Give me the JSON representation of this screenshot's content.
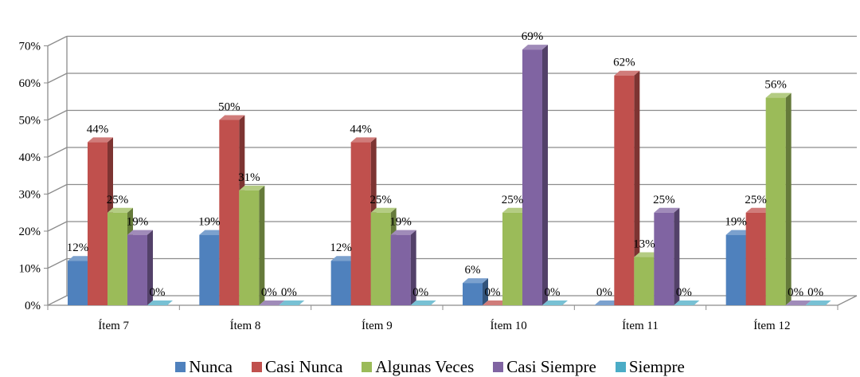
{
  "chart_data": {
    "type": "bar",
    "categories": [
      "Ítem 7",
      "Ítem 8",
      "Ítem 9",
      "Ítem 10",
      "Ítem 11",
      "Ítem 12"
    ],
    "series": [
      {
        "name": "Nunca",
        "color": "#4F81BD",
        "values": [
          12,
          19,
          12,
          6,
          0,
          19
        ],
        "labels": [
          "12%",
          "19%",
          "12%",
          "6%",
          "0%",
          "19%"
        ]
      },
      {
        "name": "Casi Nunca",
        "color": "#C0504D",
        "values": [
          44,
          50,
          44,
          0,
          62,
          25
        ],
        "labels": [
          "44%",
          "50%",
          "44%",
          "0%",
          "62%",
          "25%"
        ]
      },
      {
        "name": "Algunas Veces",
        "color": "#9BBB59",
        "values": [
          25,
          31,
          25,
          25,
          13,
          56
        ],
        "labels": [
          "25%",
          "31%",
          "25%",
          "25%",
          "13%",
          "56%"
        ]
      },
      {
        "name": "Casi Siempre",
        "color": "#8064A2",
        "values": [
          19,
          0,
          19,
          69,
          25,
          0
        ],
        "labels": [
          "19%",
          "0%",
          "19%",
          "69%",
          "25%",
          "0%"
        ]
      },
      {
        "name": "Siempre",
        "color": "#4BACC6",
        "values": [
          0,
          0,
          0,
          0,
          0,
          0
        ],
        "labels": [
          "0%",
          "0%",
          "0%",
          "0%",
          "0%",
          "0%"
        ]
      }
    ],
    "yticks": [
      "0%",
      "10%",
      "20%",
      "30%",
      "40%",
      "50%",
      "60%",
      "70%"
    ],
    "ylim": [
      0,
      70
    ],
    "grid": true,
    "legend_position": "bottom",
    "three_d": true
  }
}
